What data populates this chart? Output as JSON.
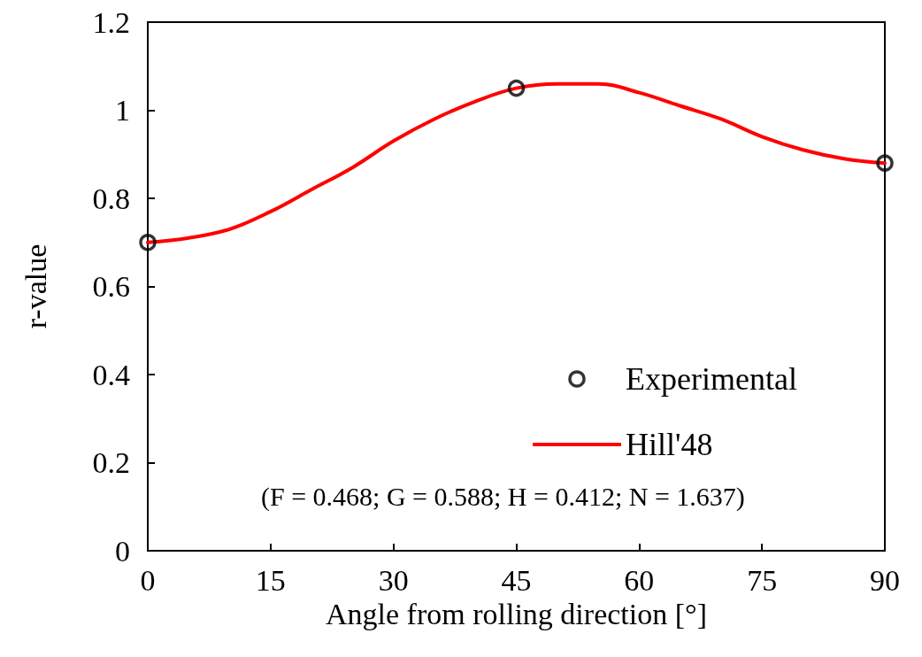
{
  "chart_data": {
    "type": "line",
    "xlabel": "Angle from rolling direction [°]",
    "ylabel": "r-value",
    "xlim": [
      0,
      90
    ],
    "xticks": [
      0,
      15,
      30,
      45,
      60,
      75,
      90
    ],
    "ylim": [
      0,
      1.2
    ],
    "yticks": [
      0,
      0.2,
      0.4,
      0.6,
      0.8,
      1,
      1.2
    ],
    "grid": false,
    "legend": "bottom right",
    "annotations": [
      "(F = 0.468; G = 0.588; H = 0.412; N = 1.637)"
    ],
    "series": [
      {
        "name": "Experimental",
        "type": "scatter",
        "marker": "circle",
        "color": "#000000",
        "x": [
          0,
          45,
          90
        ],
        "values": [
          0.7,
          1.05,
          0.88
        ]
      },
      {
        "name": "Hill'48",
        "marker": "none",
        "line_style": "solid",
        "color": "#ff0000",
        "x": [
          0,
          5,
          10,
          15,
          20,
          25,
          30,
          35,
          40,
          45,
          50,
          55,
          60,
          65,
          70,
          75,
          80,
          85,
          90
        ],
        "values": [
          0.7,
          0.71,
          0.73,
          0.77,
          0.82,
          0.87,
          0.93,
          0.98,
          1.02,
          1.05,
          1.06,
          1.06,
          1.04,
          1.01,
          0.98,
          0.94,
          0.91,
          0.89,
          0.88
        ]
      }
    ]
  }
}
